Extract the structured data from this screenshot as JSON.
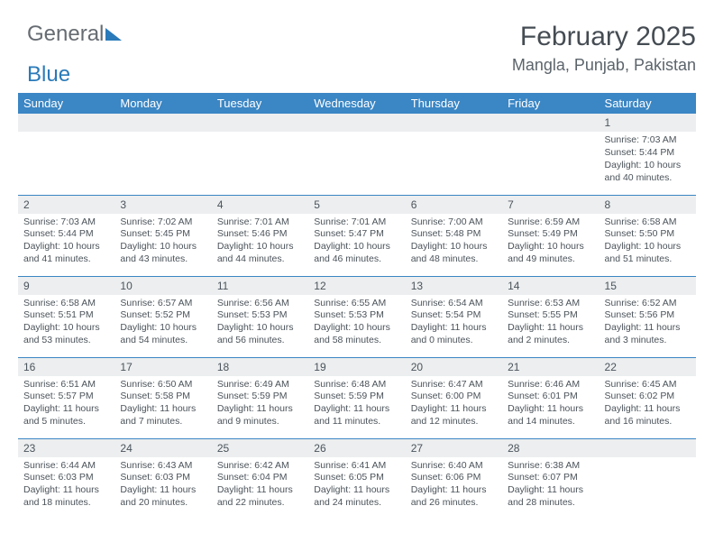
{
  "logo": {
    "text1": "General",
    "text2": "Blue"
  },
  "header": {
    "month_title": "February 2025",
    "location": "Mangla, Punjab, Pakistan"
  },
  "weekdays": [
    "Sunday",
    "Monday",
    "Tuesday",
    "Wednesday",
    "Thursday",
    "Friday",
    "Saturday"
  ],
  "colors": {
    "header_bg": "#3b86c4",
    "header_text": "#ffffff",
    "daynum_bg": "#eceeef",
    "cell_border": "#3b86c4",
    "body_text": "#4b535a",
    "title_text": "#454c53"
  },
  "weeks": [
    [
      null,
      null,
      null,
      null,
      null,
      null,
      {
        "num": "1",
        "sunrise": "Sunrise: 7:03 AM",
        "sunset": "Sunset: 5:44 PM",
        "daylight": "Daylight: 10 hours and 40 minutes."
      }
    ],
    [
      {
        "num": "2",
        "sunrise": "Sunrise: 7:03 AM",
        "sunset": "Sunset: 5:44 PM",
        "daylight": "Daylight: 10 hours and 41 minutes."
      },
      {
        "num": "3",
        "sunrise": "Sunrise: 7:02 AM",
        "sunset": "Sunset: 5:45 PM",
        "daylight": "Daylight: 10 hours and 43 minutes."
      },
      {
        "num": "4",
        "sunrise": "Sunrise: 7:01 AM",
        "sunset": "Sunset: 5:46 PM",
        "daylight": "Daylight: 10 hours and 44 minutes."
      },
      {
        "num": "5",
        "sunrise": "Sunrise: 7:01 AM",
        "sunset": "Sunset: 5:47 PM",
        "daylight": "Daylight: 10 hours and 46 minutes."
      },
      {
        "num": "6",
        "sunrise": "Sunrise: 7:00 AM",
        "sunset": "Sunset: 5:48 PM",
        "daylight": "Daylight: 10 hours and 48 minutes."
      },
      {
        "num": "7",
        "sunrise": "Sunrise: 6:59 AM",
        "sunset": "Sunset: 5:49 PM",
        "daylight": "Daylight: 10 hours and 49 minutes."
      },
      {
        "num": "8",
        "sunrise": "Sunrise: 6:58 AM",
        "sunset": "Sunset: 5:50 PM",
        "daylight": "Daylight: 10 hours and 51 minutes."
      }
    ],
    [
      {
        "num": "9",
        "sunrise": "Sunrise: 6:58 AM",
        "sunset": "Sunset: 5:51 PM",
        "daylight": "Daylight: 10 hours and 53 minutes."
      },
      {
        "num": "10",
        "sunrise": "Sunrise: 6:57 AM",
        "sunset": "Sunset: 5:52 PM",
        "daylight": "Daylight: 10 hours and 54 minutes."
      },
      {
        "num": "11",
        "sunrise": "Sunrise: 6:56 AM",
        "sunset": "Sunset: 5:53 PM",
        "daylight": "Daylight: 10 hours and 56 minutes."
      },
      {
        "num": "12",
        "sunrise": "Sunrise: 6:55 AM",
        "sunset": "Sunset: 5:53 PM",
        "daylight": "Daylight: 10 hours and 58 minutes."
      },
      {
        "num": "13",
        "sunrise": "Sunrise: 6:54 AM",
        "sunset": "Sunset: 5:54 PM",
        "daylight": "Daylight: 11 hours and 0 minutes."
      },
      {
        "num": "14",
        "sunrise": "Sunrise: 6:53 AM",
        "sunset": "Sunset: 5:55 PM",
        "daylight": "Daylight: 11 hours and 2 minutes."
      },
      {
        "num": "15",
        "sunrise": "Sunrise: 6:52 AM",
        "sunset": "Sunset: 5:56 PM",
        "daylight": "Daylight: 11 hours and 3 minutes."
      }
    ],
    [
      {
        "num": "16",
        "sunrise": "Sunrise: 6:51 AM",
        "sunset": "Sunset: 5:57 PM",
        "daylight": "Daylight: 11 hours and 5 minutes."
      },
      {
        "num": "17",
        "sunrise": "Sunrise: 6:50 AM",
        "sunset": "Sunset: 5:58 PM",
        "daylight": "Daylight: 11 hours and 7 minutes."
      },
      {
        "num": "18",
        "sunrise": "Sunrise: 6:49 AM",
        "sunset": "Sunset: 5:59 PM",
        "daylight": "Daylight: 11 hours and 9 minutes."
      },
      {
        "num": "19",
        "sunrise": "Sunrise: 6:48 AM",
        "sunset": "Sunset: 5:59 PM",
        "daylight": "Daylight: 11 hours and 11 minutes."
      },
      {
        "num": "20",
        "sunrise": "Sunrise: 6:47 AM",
        "sunset": "Sunset: 6:00 PM",
        "daylight": "Daylight: 11 hours and 12 minutes."
      },
      {
        "num": "21",
        "sunrise": "Sunrise: 6:46 AM",
        "sunset": "Sunset: 6:01 PM",
        "daylight": "Daylight: 11 hours and 14 minutes."
      },
      {
        "num": "22",
        "sunrise": "Sunrise: 6:45 AM",
        "sunset": "Sunset: 6:02 PM",
        "daylight": "Daylight: 11 hours and 16 minutes."
      }
    ],
    [
      {
        "num": "23",
        "sunrise": "Sunrise: 6:44 AM",
        "sunset": "Sunset: 6:03 PM",
        "daylight": "Daylight: 11 hours and 18 minutes."
      },
      {
        "num": "24",
        "sunrise": "Sunrise: 6:43 AM",
        "sunset": "Sunset: 6:03 PM",
        "daylight": "Daylight: 11 hours and 20 minutes."
      },
      {
        "num": "25",
        "sunrise": "Sunrise: 6:42 AM",
        "sunset": "Sunset: 6:04 PM",
        "daylight": "Daylight: 11 hours and 22 minutes."
      },
      {
        "num": "26",
        "sunrise": "Sunrise: 6:41 AM",
        "sunset": "Sunset: 6:05 PM",
        "daylight": "Daylight: 11 hours and 24 minutes."
      },
      {
        "num": "27",
        "sunrise": "Sunrise: 6:40 AM",
        "sunset": "Sunset: 6:06 PM",
        "daylight": "Daylight: 11 hours and 26 minutes."
      },
      {
        "num": "28",
        "sunrise": "Sunrise: 6:38 AM",
        "sunset": "Sunset: 6:07 PM",
        "daylight": "Daylight: 11 hours and 28 minutes."
      },
      null
    ]
  ]
}
